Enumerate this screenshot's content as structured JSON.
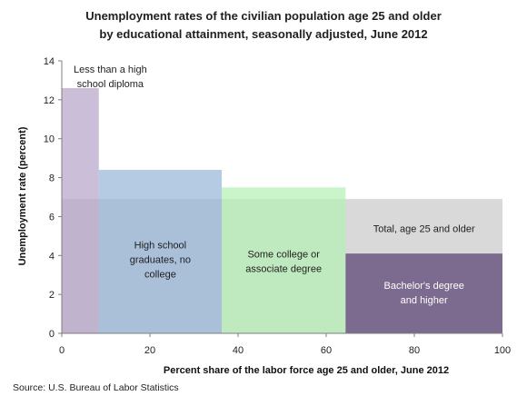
{
  "chart_data": {
    "type": "bar",
    "variable_width": true,
    "title_lines": [
      "Unemployment rates of the civilian population age 25 and older",
      "by educational attainment, seasonally adjusted, June 2012"
    ],
    "xlabel": "Percent share of the labor force age 25 and older, June 2012",
    "ylabel": "Unemployment rate (percent)",
    "xlim": [
      0,
      100
    ],
    "ylim": [
      0,
      14
    ],
    "xticks": [
      0,
      20,
      40,
      60,
      80,
      100
    ],
    "yticks": [
      0,
      2,
      4,
      6,
      8,
      10,
      12,
      14
    ],
    "grid": false,
    "total": {
      "label_lines": [
        "Total, age 25 and older"
      ],
      "x0": 0,
      "x1": 100,
      "value": 6.9,
      "color": "#d9d9d9"
    },
    "bars": [
      {
        "label_lines": [
          "Less than  a high",
          "school diploma"
        ],
        "x0": 0,
        "x1": 8.4,
        "value": 12.6,
        "color": "#b3a2c7",
        "label_color": "#1f1f1f"
      },
      {
        "label_lines": [
          "High school",
          "graduates, no",
          "college"
        ],
        "x0": 8.4,
        "x1": 36.3,
        "value": 8.4,
        "color": "#95b3d7",
        "label_color": "#1f1f1f"
      },
      {
        "label_lines": [
          "Some college or",
          "associate degree"
        ],
        "x0": 36.3,
        "x1": 64.4,
        "value": 7.5,
        "color": "#b3f0b3",
        "label_color": "#1f1f1f"
      },
      {
        "label_lines": [
          "Bachelor's degree",
          "and higher"
        ],
        "x0": 64.4,
        "x1": 100,
        "value": 4.1,
        "color": "#7d6a8f",
        "label_color": "#ffffff"
      }
    ]
  },
  "source": "Source: U.S. Bureau of Labor Statistics"
}
